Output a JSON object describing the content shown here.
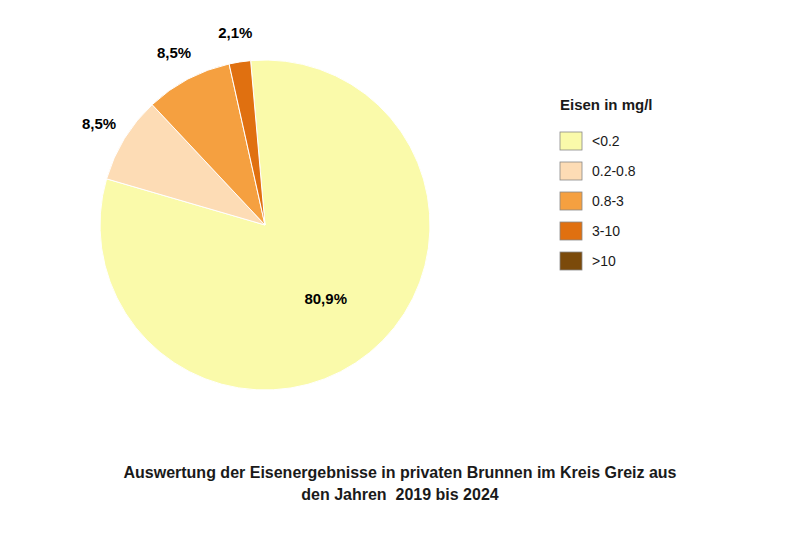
{
  "chart_data": {
    "type": "pie",
    "title": "Auswertung der Eisenergebnisse in privaten Brunnen im Kreis Greiz aus",
    "subtitle": "den Jahren  2019 bis 2024",
    "legend_title": "Eisen in mg/l",
    "legend": "right",
    "categories": [
      "<0.2",
      "0.2-0.8",
      "0.8-3",
      "3-10",
      ">10"
    ],
    "values": [
      80.9,
      8.5,
      8.5,
      2.1,
      null
    ],
    "value_labels": [
      "80,9%",
      "8,5%",
      "8,5%",
      "2,1%",
      null
    ],
    "data_labels": true,
    "colors": [
      "#FAFAAA",
      "#FDDCB5",
      "#F5A040",
      "#E07010",
      "#7B4A0A"
    ]
  }
}
